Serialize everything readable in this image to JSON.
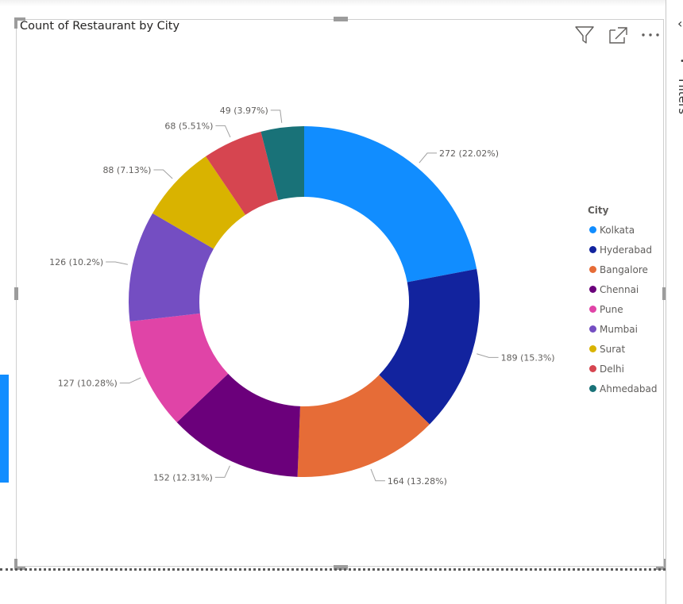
{
  "visual": {
    "title": "Count of Restaurant by City"
  },
  "toolbar": {
    "icons": [
      "filter-icon",
      "focus-mode-icon",
      "more-options-icon"
    ]
  },
  "side_pane": {
    "label": "Filters"
  },
  "legend": {
    "title": "City",
    "items": [
      {
        "label": "Kolkata",
        "color": "#118dff"
      },
      {
        "label": "Hyderabad",
        "color": "#12239e"
      },
      {
        "label": "Bangalore",
        "color": "#e66c37"
      },
      {
        "label": "Chennai",
        "color": "#6b007b"
      },
      {
        "label": "Pune",
        "color": "#e044a7"
      },
      {
        "label": "Mumbai",
        "color": "#744ec2"
      },
      {
        "label": "Surat",
        "color": "#d9b300"
      },
      {
        "label": "Delhi",
        "color": "#d64550"
      },
      {
        "label": "Ahmedabad",
        "color": "#197278"
      }
    ]
  },
  "chart_data": {
    "type": "pie",
    "subtype": "donut",
    "title": "Count of Restaurant by City",
    "categories": [
      "Kolkata",
      "Hyderabad",
      "Bangalore",
      "Chennai",
      "Pune",
      "Mumbai",
      "Surat",
      "Delhi",
      "Ahmedabad"
    ],
    "values": [
      272,
      189,
      164,
      152,
      127,
      126,
      88,
      68,
      49
    ],
    "data_labels": [
      "272 (22.02%)",
      "189 (15.3%)",
      "164 (13.28%)",
      "152 (12.31%)",
      "127 (10.28%)",
      "126 (10.2%)",
      "88 (7.13%)",
      "68 (5.51%)",
      "49 (3.97%)"
    ],
    "colors": [
      "#118dff",
      "#12239e",
      "#e66c37",
      "#6b007b",
      "#e044a7",
      "#744ec2",
      "#d9b300",
      "#d64550",
      "#197278"
    ],
    "legend_title": "City",
    "legend_position": "right"
  }
}
